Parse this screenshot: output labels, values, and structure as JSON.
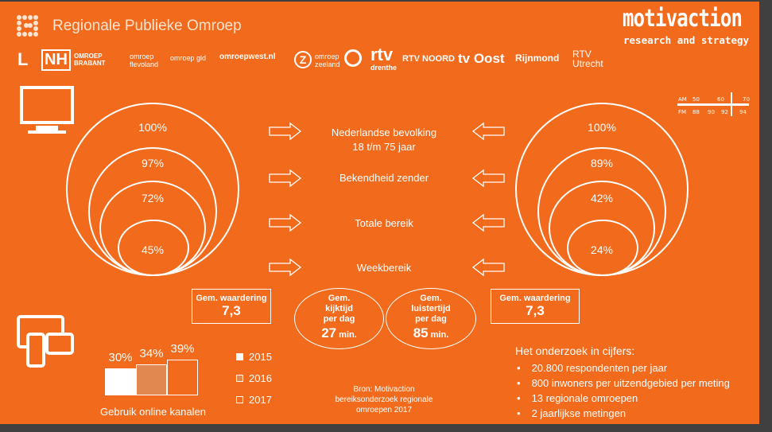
{
  "header": {
    "title": "Regionale Publieke Omroep",
    "brand": "motivaction",
    "brand_tagline": "research and strategy"
  },
  "logos": [
    "Limburg L",
    "NH",
    "OMROEP BRABANT",
    "omroep flevoland",
    "omroep gld",
    "omroepwest.nl",
    "omroep zeeland",
    "Omrop Fryslân",
    "rtv drenthe",
    "RTV NOORD",
    "tv Oost",
    "Rijnmond",
    "RTV Utrecht"
  ],
  "radio_dial": {
    "am": "AM",
    "fm": "FM",
    "am_ticks": [
      "50",
      "60",
      "70"
    ],
    "fm_ticks": [
      "88",
      "90",
      "92",
      "94"
    ]
  },
  "rows": [
    {
      "label": "Nederlandse bevolking\n18 t/m 75 jaar"
    },
    {
      "label": "Bekendheid zender"
    },
    {
      "label": "Totale bereik"
    },
    {
      "label": "Weekbereik"
    }
  ],
  "tv": {
    "values": [
      "100%",
      "97%",
      "72%",
      "45%"
    ],
    "rating_label": "Gem. waardering",
    "rating": "7,3",
    "time_label": "Gem. kijktijd per dag",
    "time_lines": [
      "Gem.",
      "kijktijd",
      "per dag"
    ],
    "time_value": "27",
    "time_unit": "min."
  },
  "radio": {
    "values": [
      "100%",
      "89%",
      "42%",
      "24%"
    ],
    "rating_label": "Gem. waardering",
    "rating": "7,3",
    "time_lines": [
      "Gem.",
      "luistertijd",
      "per dag"
    ],
    "time_value": "85",
    "time_unit": "min."
  },
  "chart_data": {
    "type": "bar",
    "title": "Gebruik online kanalen",
    "categories": [
      "2015",
      "2016",
      "2017"
    ],
    "values": [
      30,
      34,
      39
    ],
    "data_labels": [
      "30%",
      "34%",
      "39%"
    ],
    "legend": [
      "2015",
      "2016",
      "2017"
    ],
    "legend_position": "right",
    "colors": [
      "#FFFFFF",
      "#E0884F",
      "#F26A1B"
    ]
  },
  "source": "Bron: Motivaction bereiksonderzoek regionale omroepen 2017",
  "facts": {
    "title": "Het onderzoek in cijfers:",
    "items": [
      "20.800 respondenten per jaar",
      "800 inwoners per uitzendgebied per meting",
      "13 regionale omroepen",
      "2 jaarlijkse metingen"
    ]
  },
  "colors": {
    "background": "#F26A1B",
    "foreground": "#FFFFFF",
    "frame": "#404040"
  }
}
